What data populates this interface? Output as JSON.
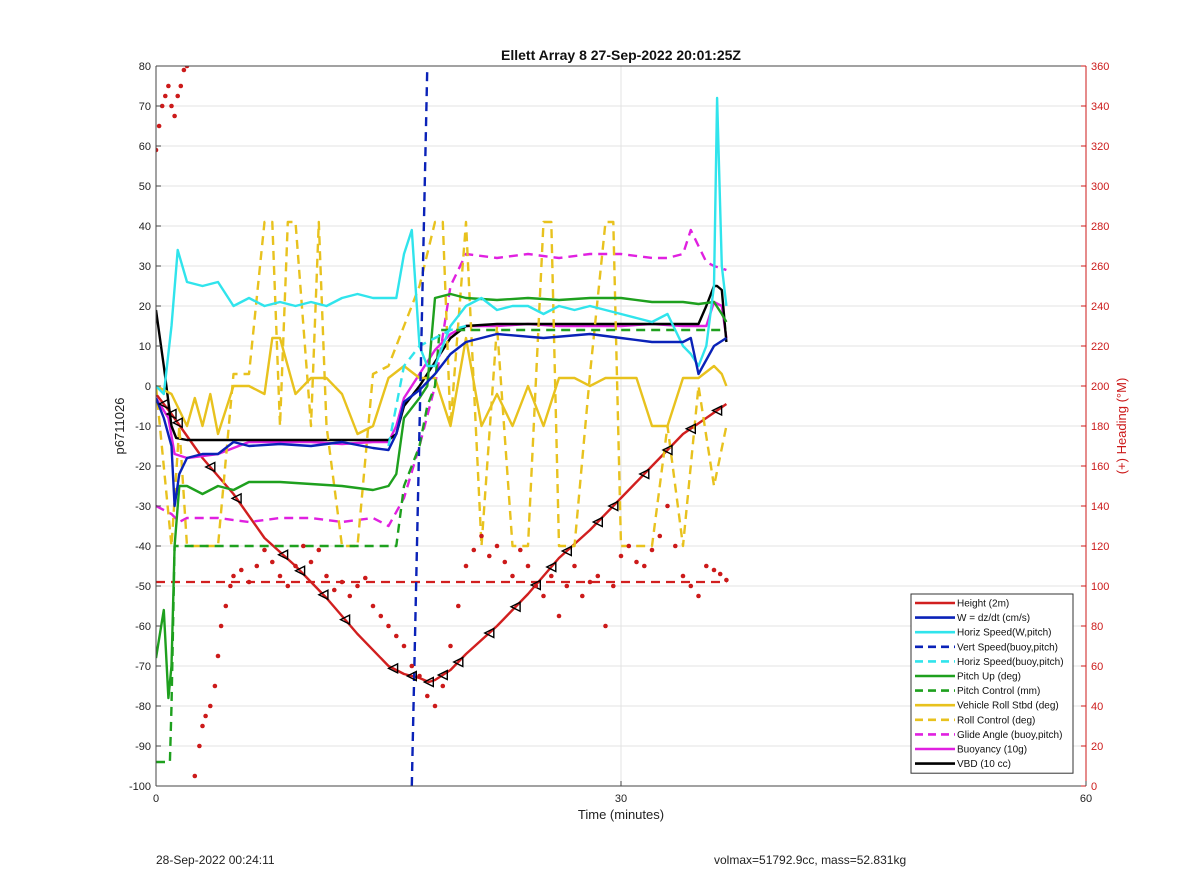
{
  "footer": {
    "left": "28-Sep-2022 00:24:11",
    "right": "volmax=51792.9cc, mass=52.831kg"
  },
  "chart_data": {
    "type": "line",
    "title": "Ellett Array 8 27-Sep-2022 20:01:25Z",
    "xlabel": "Time (minutes)",
    "ylabel": "p6711026",
    "y2label": "(+) Heading (°M)",
    "xlim": [
      0,
      60
    ],
    "ylim": [
      -100,
      80
    ],
    "y2lim": [
      0,
      360
    ],
    "xticks": [
      0,
      30,
      60
    ],
    "yticks": [
      -100,
      -90,
      -80,
      -70,
      -60,
      -50,
      -40,
      -30,
      -20,
      -10,
      0,
      10,
      20,
      30,
      40,
      50,
      60,
      70,
      80
    ],
    "y2ticks": [
      0,
      20,
      40,
      60,
      80,
      100,
      120,
      140,
      160,
      180,
      200,
      220,
      240,
      260,
      280,
      300,
      320,
      340,
      360
    ],
    "grid": true,
    "legend_position": "bottom-right",
    "colors": {
      "red": "#d11f1f",
      "blue": "#0a22b8",
      "cyan": "#30e4ec",
      "green": "#1ea01e",
      "yellow": "#e8c21e",
      "magenta": "#e020e0",
      "black": "#000000",
      "heading": "#cc1a1a"
    },
    "series": [
      {
        "name": "Height (2m)",
        "color": "red",
        "style": "solid",
        "x": [
          0,
          1,
          3,
          5,
          7,
          9,
          11,
          13,
          15,
          16,
          17,
          17.6,
          18,
          19,
          20,
          22,
          24,
          26,
          28,
          30,
          32,
          34,
          35.5,
          36.8
        ],
        "y": [
          -2,
          -7,
          -18,
          -27,
          -38,
          -45,
          -53,
          -62,
          -70,
          -72,
          -73,
          -74,
          -73.5,
          -71,
          -67,
          -60,
          -52,
          -43,
          -36,
          -28,
          -20,
          -12,
          -8,
          -4.5
        ]
      },
      {
        "name": "W = dz/dt (cm/s)",
        "color": "blue",
        "style": "solid",
        "x": [
          0,
          0.5,
          1,
          1.2,
          1.5,
          2,
          3,
          4,
          5,
          6,
          8,
          10,
          12,
          14,
          15,
          15.5,
          16,
          17,
          17.5,
          18,
          19,
          20,
          22,
          25,
          28,
          30,
          32,
          34,
          34.5,
          35,
          36,
          36.8
        ],
        "y": [
          -3,
          -8,
          -15,
          -30,
          -22,
          -18,
          -17,
          -17,
          -14,
          -15,
          -14.5,
          -15,
          -14,
          -15.5,
          -16,
          -12,
          -4,
          -1,
          1,
          3,
          8,
          11,
          13,
          12,
          13,
          12,
          11,
          11,
          12,
          3,
          10,
          12
        ]
      },
      {
        "name": "Horiz Speed(W,pitch)",
        "color": "cyan",
        "style": "solid",
        "x": [
          0,
          0.5,
          1,
          1.4,
          2,
          3,
          4,
          5,
          6,
          7,
          8,
          9,
          10,
          11,
          12,
          13,
          14,
          15,
          15.5,
          16,
          16.5,
          17,
          17.5,
          18,
          19,
          20,
          21,
          22,
          23,
          24,
          25,
          26,
          27,
          28,
          29,
          30,
          31,
          32,
          33,
          34,
          34.5,
          35,
          35.5,
          36,
          36.2,
          36.5,
          36.8
        ],
        "y": [
          0,
          -2,
          15,
          34,
          26,
          25,
          26,
          20,
          22,
          20,
          21,
          20,
          21,
          20,
          22,
          23,
          22,
          22,
          22,
          33,
          39,
          10,
          5,
          5,
          15,
          20,
          22,
          19,
          20,
          20,
          18,
          20,
          19,
          20,
          19,
          18,
          17,
          16,
          18,
          10,
          8,
          5,
          10,
          25,
          72,
          30,
          20
        ]
      },
      {
        "name": "Vert Speed(buoy,pitch)",
        "color": "blue",
        "style": "dashed",
        "x": [
          16.5,
          17.5
        ],
        "y": [
          -100,
          80
        ]
      },
      {
        "name": "Horiz Speed(buoy,pitch)",
        "color": "cyan",
        "style": "dashed",
        "x": [
          15,
          16,
          17,
          18,
          19,
          20
        ],
        "y": [
          -15,
          5,
          10,
          12,
          14,
          15
        ]
      },
      {
        "name": "Pitch Up (deg)",
        "color": "green",
        "style": "solid",
        "x": [
          0,
          0.5,
          0.8,
          1,
          1.2,
          1.5,
          2,
          3,
          4,
          5,
          6,
          8,
          10,
          12,
          14,
          15,
          15.5,
          16,
          17,
          17.5,
          18,
          19,
          20,
          22,
          24,
          26,
          28,
          30,
          32,
          34,
          35,
          36,
          36.5,
          36.8
        ],
        "y": [
          -68,
          -56,
          -78,
          -70,
          -40,
          -25,
          -25,
          -27,
          -25,
          -26,
          -24,
          -24,
          -24.5,
          -25,
          -26,
          -25,
          -22,
          -8,
          -3,
          0,
          22,
          23,
          22,
          21.5,
          22,
          21.5,
          22,
          22,
          21,
          21,
          20.5,
          21,
          18,
          16
        ]
      },
      {
        "name": "Pitch Control (mm)",
        "color": "green",
        "style": "dashed",
        "x": [
          0,
          0.5,
          0.9,
          1,
          1.2,
          1.5,
          15,
          15.5,
          16,
          17,
          17.5,
          18,
          18.3,
          36.8
        ],
        "y": [
          -94,
          -94,
          -94,
          -80,
          -40,
          -40,
          -40,
          -40,
          -25,
          -15,
          -5,
          0,
          14,
          14
        ]
      },
      {
        "name": "Vehicle Roll Stbd (deg)",
        "color": "yellow",
        "style": "solid",
        "x": [
          0,
          1,
          2,
          2.5,
          3,
          3.5,
          4,
          5,
          6,
          7,
          7.5,
          8,
          9,
          10,
          11,
          12,
          13,
          14,
          15,
          16,
          17,
          18,
          19,
          20,
          21,
          22,
          23,
          24,
          25,
          26,
          27,
          28,
          29,
          30,
          31,
          32,
          33,
          34,
          35,
          36,
          36.5,
          36.8
        ],
        "y": [
          0,
          -2,
          -10,
          -3,
          -10,
          -2,
          -12,
          0,
          0,
          -2,
          12,
          12,
          -2,
          2,
          2,
          -2,
          -12,
          -10,
          2,
          5,
          2,
          2,
          -10,
          12,
          -10,
          -2,
          -10,
          0,
          -10,
          2,
          2,
          0,
          2,
          2,
          2,
          -10,
          -10,
          2,
          2,
          5,
          3,
          0
        ]
      },
      {
        "name": "Roll Control (deg)",
        "color": "yellow",
        "style": "dashed",
        "x": [
          0,
          1,
          1.5,
          2,
          3,
          4,
          5,
          6,
          7,
          7.5,
          8,
          8.5,
          9,
          10,
          10.5,
          11,
          12,
          13,
          14,
          15,
          16,
          17,
          18,
          18.5,
          19,
          20,
          21,
          22,
          23,
          24,
          25,
          25.5,
          26,
          27,
          28,
          29,
          29.5,
          30,
          31,
          32,
          33,
          34,
          35,
          36,
          36.8
        ],
        "y": [
          0,
          -40,
          -10,
          -40,
          -40,
          -40,
          3,
          3,
          41,
          41,
          -10,
          41,
          41,
          -10,
          41,
          -10,
          -40,
          -40,
          3,
          5,
          15,
          25,
          41,
          41,
          -10,
          41,
          -40,
          15,
          -40,
          -40,
          41,
          41,
          -40,
          -40,
          3,
          41,
          41,
          -40,
          -40,
          -40,
          -10,
          -40,
          0,
          -25,
          -10
        ]
      },
      {
        "name": "Glide Angle (buoy,pitch)",
        "color": "magenta",
        "style": "dashed",
        "x": [
          0,
          1,
          1.5,
          2,
          4,
          6,
          8,
          10,
          12,
          14,
          15,
          16,
          17,
          18,
          19,
          20,
          22,
          24,
          26,
          28,
          30,
          32,
          33,
          34,
          34.5,
          35,
          35.5,
          36,
          36.8
        ],
        "y": [
          -30,
          -32,
          -34,
          -33,
          -33,
          -34,
          -33,
          -33,
          -34,
          -33,
          -35,
          -28,
          -15,
          0,
          25,
          33,
          32,
          33,
          32,
          33,
          33,
          32,
          32,
          33,
          39,
          35,
          31,
          30,
          29
        ]
      },
      {
        "name": "Buoyancy (10g)",
        "color": "magenta",
        "style": "solid",
        "x": [
          0,
          0.8,
          1.2,
          2,
          4,
          6,
          8,
          10,
          12,
          14,
          15,
          15.5,
          16,
          17,
          18,
          19,
          20,
          22,
          24,
          26,
          28,
          30,
          32,
          34,
          35,
          35.5,
          36,
          36.5,
          36.8
        ],
        "y": [
          -3,
          -8,
          -17,
          -18,
          -17,
          -14,
          -14,
          -14,
          -14.5,
          -14,
          -14,
          -10,
          -3,
          3,
          9,
          13,
          15,
          15,
          15.5,
          15,
          15,
          15,
          15.5,
          15,
          15,
          15,
          21,
          20,
          12
        ]
      },
      {
        "name": "VBD (10 cc)",
        "color": "black",
        "style": "solid",
        "x": [
          0,
          0.5,
          1,
          1.3,
          2,
          4,
          6,
          8,
          10,
          12,
          14,
          15,
          15.5,
          16,
          17,
          18,
          19,
          20,
          22,
          24,
          26,
          28,
          30,
          32,
          34,
          35,
          35.5,
          36,
          36.2,
          36.5,
          36.8
        ],
        "y": [
          19,
          5,
          -10,
          -13,
          -13.5,
          -13.5,
          -13.5,
          -13.5,
          -13.5,
          -13.5,
          -13.5,
          -13.5,
          -12,
          -5,
          0,
          6,
          12,
          15,
          15.5,
          15.5,
          15.5,
          15.5,
          15.5,
          15.5,
          15.5,
          15.5,
          20,
          25,
          25,
          24,
          11
        ]
      }
    ],
    "heading_points": {
      "name": "Heading",
      "axis": "y2",
      "color": "heading",
      "x": [
        0,
        0.2,
        0.4,
        0.6,
        0.8,
        1.0,
        1.2,
        1.4,
        1.6,
        1.8,
        2.0,
        2.5,
        2.8,
        3.0,
        3.2,
        3.5,
        3.8,
        4.0,
        4.2,
        4.5,
        4.8,
        5.0,
        5.5,
        6.0,
        6.5,
        7.0,
        7.5,
        8.0,
        8.5,
        9.0,
        9.5,
        10.0,
        10.5,
        11.0,
        11.5,
        12.0,
        12.5,
        13.0,
        13.5,
        14.0,
        14.5,
        15.0,
        15.5,
        16.0,
        16.5,
        17.0,
        17.5,
        18.0,
        18.5,
        19.0,
        19.5,
        20.0,
        20.5,
        21.0,
        21.5,
        22.0,
        22.5,
        23.0,
        23.5,
        24.0,
        24.5,
        25.0,
        25.5,
        26.0,
        26.5,
        27.0,
        27.5,
        28.0,
        28.5,
        29.0,
        29.5,
        30.0,
        30.5,
        31.0,
        31.5,
        32.0,
        32.5,
        33.0,
        33.5,
        34.0,
        34.5,
        35.0,
        35.5,
        36.0,
        36.4,
        36.8
      ],
      "y": [
        318,
        330,
        340,
        345,
        350,
        340,
        335,
        345,
        350,
        358,
        360,
        5,
        20,
        30,
        35,
        40,
        50,
        65,
        80,
        90,
        100,
        105,
        108,
        102,
        110,
        118,
        112,
        105,
        100,
        110,
        120,
        112,
        118,
        105,
        98,
        102,
        95,
        100,
        104,
        90,
        85,
        80,
        75,
        70,
        60,
        55,
        45,
        40,
        50,
        70,
        90,
        110,
        118,
        125,
        115,
        120,
        112,
        105,
        118,
        110,
        100,
        95,
        105,
        85,
        100,
        110,
        95,
        102,
        105,
        80,
        100,
        115,
        120,
        112,
        110,
        118,
        125,
        140,
        120,
        105,
        100,
        95,
        110,
        108,
        106,
        103
      ]
    },
    "reference_lines": [
      {
        "axis": "y",
        "y": -49,
        "color": "red",
        "style": "dashed"
      }
    ],
    "markers": {
      "shape": "triangle-left",
      "color": "black",
      "on_series": "Height (2m)",
      "x": [
        0.5,
        1,
        1.4,
        3.5,
        5.2,
        8.2,
        9.3,
        10.8,
        12.2,
        15.3,
        16.5,
        17.6,
        18.5,
        19.5,
        21.5,
        23.2,
        24.5,
        25.5,
        26.5,
        28.5,
        29.5,
        31.5,
        33,
        34.5,
        36.2
      ]
    }
  }
}
